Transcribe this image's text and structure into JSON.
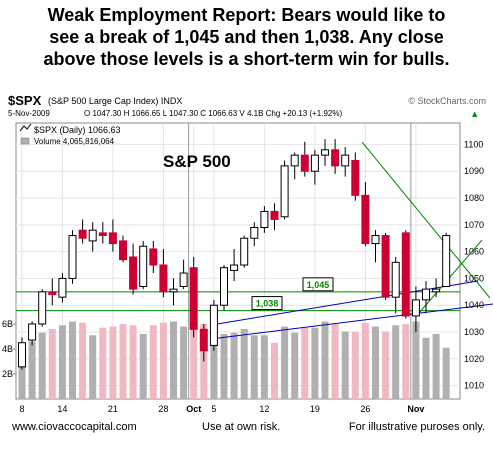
{
  "headline": {
    "line1": "Weak Employment Report:  Bears would like to",
    "line2": "see a break of 1,045 and then 1,038.  Any close",
    "line3": "above those levels is a short-term win for bulls."
  },
  "chart_header": {
    "symbol": "$SPX",
    "name": "(S&P 500 Large Cap Index) INDX",
    "watermark": "© StockCharts.com",
    "date": "5-Nov-2009",
    "ohlc": "O 1047.30  H 1066.65  L 1047.30  C 1066.63  V 4.1B  Chg +20.13 (+1.92%)",
    "chg_arrow": "▲",
    "legend_price": "$SPX (Daily) 1066.63",
    "legend_volume": "Volume 4,065,816,064"
  },
  "footer": {
    "left": "www.ciovaccocapital.com",
    "center": "Use at own risk.",
    "right": "For illustrative puroses only."
  },
  "colors": {
    "up": "#ffffff",
    "down": "#cc0033",
    "volume_up": "#b0b0b0",
    "volume_down": "#f0b8c0",
    "support": "#008800",
    "trend": "#0000bb"
  },
  "chart_data": {
    "type": "candlestick",
    "title": "S&P 500",
    "ylim": [
      1005,
      1108
    ],
    "y_ticks": [
      1010,
      1020,
      1030,
      1040,
      1050,
      1060,
      1070,
      1080,
      1090,
      1100
    ],
    "volume_ticks": [
      "2B",
      "4B",
      "6B"
    ],
    "volume_ylim": [
      0,
      8
    ],
    "x_tick_labels": [
      {
        "index": 0,
        "label": "8"
      },
      {
        "index": 4,
        "label": "14"
      },
      {
        "index": 9,
        "label": "21"
      },
      {
        "index": 14,
        "label": "28"
      },
      {
        "index": 17,
        "label": "Oct"
      },
      {
        "index": 19,
        "label": "5"
      },
      {
        "index": 24,
        "label": "12"
      },
      {
        "index": 29,
        "label": "19"
      },
      {
        "index": 34,
        "label": "26"
      },
      {
        "index": 39,
        "label": "Nov"
      }
    ],
    "month_divider_index": [
      17,
      39
    ],
    "support_levels": [
      {
        "value": 1045,
        "label": "1,045"
      },
      {
        "value": 1038,
        "label": "1,038"
      }
    ],
    "candles": [
      {
        "o": 1017,
        "h": 1028,
        "l": 1016,
        "c": 1026,
        "v": 3.4
      },
      {
        "o": 1027,
        "h": 1034,
        "l": 1025,
        "c": 1033,
        "v": 4.6
      },
      {
        "o": 1033,
        "h": 1046,
        "l": 1032,
        "c": 1045,
        "v": 5.3
      },
      {
        "o": 1045,
        "h": 1050,
        "l": 1040,
        "c": 1044,
        "v": 5.6
      },
      {
        "o": 1043,
        "h": 1052,
        "l": 1041,
        "c": 1050,
        "v": 5.9
      },
      {
        "o": 1050,
        "h": 1068,
        "l": 1048,
        "c": 1066,
        "v": 6.2
      },
      {
        "o": 1068,
        "h": 1072,
        "l": 1063,
        "c": 1065,
        "v": 6.1
      },
      {
        "o": 1064,
        "h": 1071,
        "l": 1060,
        "c": 1068,
        "v": 5.1
      },
      {
        "o": 1067,
        "h": 1071,
        "l": 1063,
        "c": 1066,
        "v": 5.7
      },
      {
        "o": 1067,
        "h": 1072,
        "l": 1060,
        "c": 1063,
        "v": 5.8
      },
      {
        "o": 1064,
        "h": 1066,
        "l": 1056,
        "c": 1057,
        "v": 6.0
      },
      {
        "o": 1058,
        "h": 1063,
        "l": 1044,
        "c": 1046,
        "v": 5.9
      },
      {
        "o": 1047,
        "h": 1064,
        "l": 1046,
        "c": 1062,
        "v": 5.2
      },
      {
        "o": 1061,
        "h": 1064,
        "l": 1052,
        "c": 1055,
        "v": 5.9
      },
      {
        "o": 1055,
        "h": 1061,
        "l": 1043,
        "c": 1045,
        "v": 6.1
      },
      {
        "o": 1045,
        "h": 1050,
        "l": 1040,
        "c": 1046,
        "v": 6.2
      },
      {
        "o": 1047,
        "h": 1057,
        "l": 1046,
        "c": 1052,
        "v": 5.8
      },
      {
        "o": 1054,
        "h": 1058,
        "l": 1028,
        "c": 1031,
        "v": 6.3
      },
      {
        "o": 1031,
        "h": 1033,
        "l": 1019,
        "c": 1023,
        "v": 6.0
      },
      {
        "o": 1025,
        "h": 1042,
        "l": 1023,
        "c": 1040,
        "v": 4.5
      },
      {
        "o": 1040,
        "h": 1055,
        "l": 1038,
        "c": 1054,
        "v": 5.2
      },
      {
        "o": 1053,
        "h": 1061,
        "l": 1049,
        "c": 1055,
        "v": 5.3
      },
      {
        "o": 1055,
        "h": 1066,
        "l": 1054,
        "c": 1065,
        "v": 5.6
      },
      {
        "o": 1065,
        "h": 1071,
        "l": 1062,
        "c": 1069,
        "v": 5.1
      },
      {
        "o": 1069,
        "h": 1077,
        "l": 1067,
        "c": 1075,
        "v": 5.1
      },
      {
        "o": 1075,
        "h": 1078,
        "l": 1068,
        "c": 1072,
        "v": 4.5
      },
      {
        "o": 1073,
        "h": 1094,
        "l": 1072,
        "c": 1092,
        "v": 5.8
      },
      {
        "o": 1092,
        "h": 1097,
        "l": 1087,
        "c": 1096,
        "v": 5.3
      },
      {
        "o": 1096,
        "h": 1101,
        "l": 1088,
        "c": 1090,
        "v": 5.7
      },
      {
        "o": 1090,
        "h": 1098,
        "l": 1085,
        "c": 1096,
        "v": 5.7
      },
      {
        "o": 1096,
        "h": 1102,
        "l": 1092,
        "c": 1098,
        "v": 6.2
      },
      {
        "o": 1098,
        "h": 1102,
        "l": 1089,
        "c": 1092,
        "v": 6.0
      },
      {
        "o": 1092,
        "h": 1099,
        "l": 1088,
        "c": 1096,
        "v": 5.4
      },
      {
        "o": 1094,
        "h": 1097,
        "l": 1079,
        "c": 1081,
        "v": 5.4
      },
      {
        "o": 1081,
        "h": 1086,
        "l": 1062,
        "c": 1063,
        "v": 6.1
      },
      {
        "o": 1063,
        "h": 1068,
        "l": 1056,
        "c": 1066,
        "v": 5.8
      },
      {
        "o": 1066,
        "h": 1067,
        "l": 1042,
        "c": 1043,
        "v": 5.4
      },
      {
        "o": 1043,
        "h": 1058,
        "l": 1037,
        "c": 1056,
        "v": 5.9
      },
      {
        "o": 1067,
        "h": 1068,
        "l": 1035,
        "c": 1036,
        "v": 6.0
      },
      {
        "o": 1036,
        "h": 1047,
        "l": 1030,
        "c": 1042,
        "v": 6.2
      },
      {
        "o": 1042,
        "h": 1049,
        "l": 1037,
        "c": 1046,
        "v": 4.9
      },
      {
        "o": 1045,
        "h": 1050,
        "l": 1043,
        "c": 1046,
        "v": 5.2
      },
      {
        "o": 1047,
        "h": 1067,
        "l": 1047,
        "c": 1066,
        "v": 4.1
      }
    ]
  }
}
